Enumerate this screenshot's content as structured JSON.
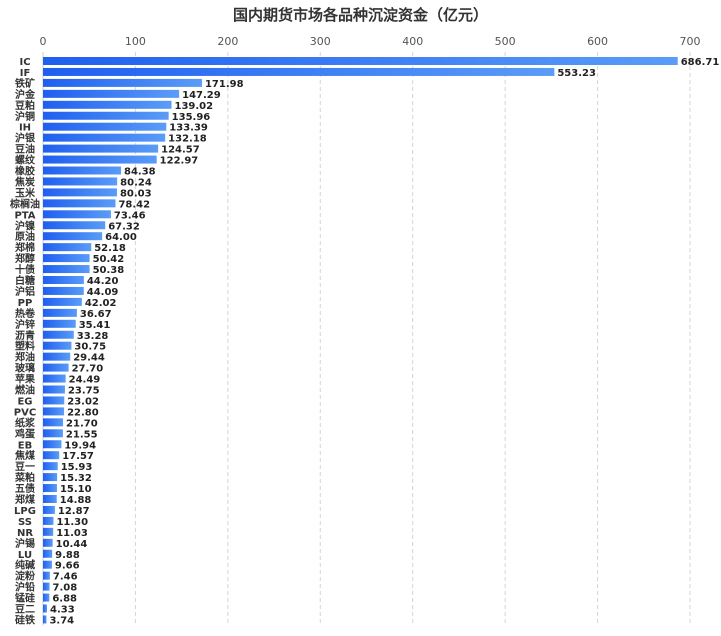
{
  "chart_data": {
    "type": "bar",
    "orientation": "horizontal",
    "title": "国内期货市场各品种沉淀资金（亿元）",
    "xlabel": "",
    "ylabel": "",
    "xlim": [
      0,
      700
    ],
    "xticks": [
      0,
      100,
      200,
      300,
      400,
      500,
      600,
      700
    ],
    "x_axis_position": "top",
    "grid": "vertical dashed",
    "bar_gradient": [
      "#1f5ff0",
      "#5a9cf7"
    ],
    "categories": [
      "IC",
      "IF",
      "铁矿",
      "沪金",
      "豆粕",
      "沪铜",
      "IH",
      "沪银",
      "豆油",
      "螺纹",
      "橡胶",
      "焦炭",
      "玉米",
      "棕榈油",
      "PTA",
      "沪镍",
      "原油",
      "郑棉",
      "郑醇",
      "十债",
      "白糖",
      "沪铝",
      "PP",
      "热卷",
      "沪锌",
      "沥青",
      "塑料",
      "郑油",
      "玻璃",
      "苹果",
      "燃油",
      "EG",
      "PVC",
      "纸浆",
      "鸡蛋",
      "EB",
      "焦煤",
      "豆一",
      "菜粕",
      "五债",
      "郑煤",
      "LPG",
      "SS",
      "NR",
      "沪锡",
      "LU",
      "纯碱",
      "淀粉",
      "沪铅",
      "锰硅",
      "豆二",
      "硅铁"
    ],
    "values": [
      686.71,
      553.23,
      171.98,
      147.29,
      139.02,
      135.96,
      133.39,
      132.18,
      124.57,
      122.97,
      84.38,
      80.24,
      80.03,
      78.42,
      73.46,
      67.32,
      64.0,
      52.18,
      50.42,
      50.38,
      44.2,
      44.09,
      42.02,
      36.67,
      35.41,
      33.28,
      30.75,
      29.44,
      27.7,
      24.49,
      23.75,
      23.02,
      22.8,
      21.7,
      21.55,
      19.94,
      17.57,
      15.93,
      15.32,
      15.1,
      14.88,
      12.87,
      11.3,
      11.03,
      10.44,
      9.88,
      9.66,
      7.46,
      7.08,
      6.88,
      4.33,
      3.74
    ],
    "value_labels": [
      "686.71",
      "553.23",
      "171.98",
      "147.29",
      "139.02",
      "135.96",
      "133.39",
      "132.18",
      "124.57",
      "122.97",
      "84.38",
      "80.24",
      "80.03",
      "78.42",
      "73.46",
      "67.32",
      "64.00",
      "52.18",
      "50.42",
      "50.38",
      "44.20",
      "44.09",
      "42.02",
      "36.67",
      "35.41",
      "33.28",
      "30.75",
      "29.44",
      "27.70",
      "24.49",
      "23.75",
      "23.02",
      "22.80",
      "21.70",
      "21.55",
      "19.94",
      "17.57",
      "15.93",
      "15.32",
      "15.10",
      "14.88",
      "12.87",
      "11.30",
      "11.03",
      "10.44",
      "9.88",
      "9.66",
      "7.46",
      "7.08",
      "6.88",
      "4.33",
      "3.74"
    ]
  }
}
